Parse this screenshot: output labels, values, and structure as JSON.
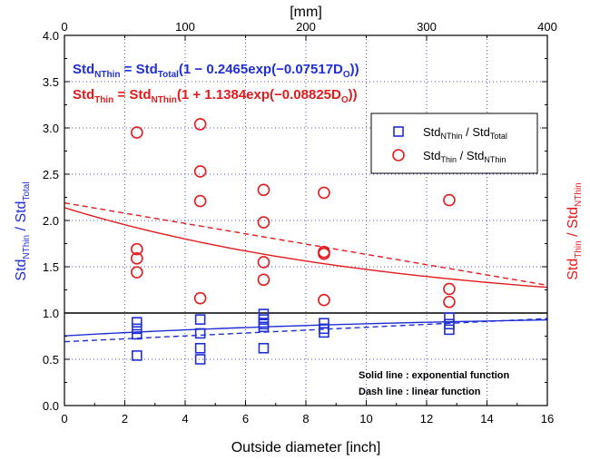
{
  "chart_data": {
    "type": "scatter",
    "xlabel": "Outside diameter [inch]",
    "x2label": "[mm]",
    "xlim": [
      0,
      16
    ],
    "ylim": [
      0,
      4.0
    ],
    "x2lim": [
      0,
      400
    ],
    "xticks": [
      "0",
      "2",
      "4",
      "6",
      "8",
      "10",
      "12",
      "14",
      "16"
    ],
    "yticks": [
      "0.0",
      "0.5",
      "1.0",
      "1.5",
      "2.0",
      "2.5",
      "3.0",
      "3.5",
      "4.0"
    ],
    "x2ticks": [
      "0",
      "100",
      "200",
      "300",
      "400"
    ],
    "grid": true,
    "legend_position": "upper-right",
    "colors": {
      "blue": "#1f2fd6",
      "red": "#e31a1c",
      "grid": "#4a4ad8"
    },
    "ylabel_left": {
      "main": "Std",
      "sub1": "NThin",
      "mid": " / Std",
      "sub2": "Total"
    },
    "ylabel_right": {
      "main": "Std",
      "sub1": "Thin",
      "mid": " / Std",
      "sub2": "NThin"
    },
    "equations": [
      {
        "a": "Std",
        "a_sub": "NThin",
        "b": " = Std",
        "b_sub": "Total",
        "c": "(1 − 0.2465exp(−0.07517D",
        "c_sub": "O",
        "d": "))"
      },
      {
        "a": "Std",
        "a_sub": "Thin",
        "b": " = Std",
        "b_sub": "NThin",
        "c": "(1 + 1.1384exp(−0.08825D",
        "c_sub": "O",
        "d": "))"
      }
    ],
    "legend": [
      {
        "main": "Std",
        "sub1": "NThin",
        "mid": " / Std",
        "sub2": "Total"
      },
      {
        "main": "Std",
        "sub1": "Thin",
        "mid": " / Std",
        "sub2": "NThin"
      }
    ],
    "annotations": [
      "Solid line : exponential function",
      "Dash line : linear function"
    ],
    "reference_line_y": 1.0,
    "series": [
      {
        "name": "Std_NThin / Std_Total",
        "marker": "square",
        "points": [
          [
            2.4,
            0.9
          ],
          [
            2.4,
            0.83
          ],
          [
            2.4,
            0.77
          ],
          [
            2.4,
            0.54
          ],
          [
            4.5,
            0.93
          ],
          [
            4.5,
            0.78
          ],
          [
            4.5,
            0.62
          ],
          [
            4.5,
            0.5
          ],
          [
            6.6,
            0.99
          ],
          [
            6.6,
            0.93
          ],
          [
            6.6,
            0.88
          ],
          [
            6.6,
            0.85
          ],
          [
            6.6,
            0.62
          ],
          [
            8.6,
            0.89
          ],
          [
            8.6,
            0.83
          ],
          [
            8.6,
            0.79
          ],
          [
            12.75,
            0.95
          ],
          [
            12.75,
            0.88
          ],
          [
            12.75,
            0.82
          ]
        ]
      },
      {
        "name": "Std_Thin / Std_NThin",
        "marker": "circle",
        "points": [
          [
            2.4,
            2.95
          ],
          [
            2.4,
            1.69
          ],
          [
            2.4,
            1.59
          ],
          [
            2.4,
            1.44
          ],
          [
            4.5,
            3.04
          ],
          [
            4.5,
            2.53
          ],
          [
            4.5,
            2.21
          ],
          [
            4.5,
            1.16
          ],
          [
            6.6,
            2.33
          ],
          [
            6.6,
            1.98
          ],
          [
            6.6,
            1.55
          ],
          [
            6.6,
            1.36
          ],
          [
            8.6,
            2.3
          ],
          [
            8.6,
            1.66
          ],
          [
            8.6,
            1.64
          ],
          [
            8.6,
            1.14
          ],
          [
            12.75,
            2.22
          ],
          [
            12.75,
            1.26
          ],
          [
            12.75,
            1.12
          ]
        ]
      }
    ],
    "curves": [
      {
        "series": "Std_NThin / Std_Total",
        "style": "solid",
        "func": "exp",
        "a": -0.2465,
        "b": -0.07517
      },
      {
        "series": "Std_Thin / Std_NThin",
        "style": "solid",
        "func": "exp",
        "a": 1.1384,
        "b": -0.08825
      },
      {
        "series": "Std_NThin / Std_Total",
        "style": "dash",
        "func": "linear",
        "y0": 0.69,
        "y1": 0.94
      },
      {
        "series": "Std_Thin / Std_NThin",
        "style": "dash",
        "func": "linear",
        "y0": 2.19,
        "y1": 1.3
      }
    ]
  }
}
